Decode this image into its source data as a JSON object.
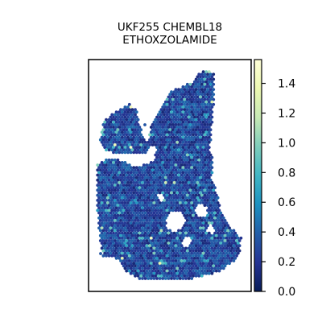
{
  "title_line1": "UKF255 CHEMBL18",
  "title_line2": "ETHOXZOLAMIDE",
  "chart_data": {
    "type": "scatter",
    "title": "UKF255 CHEMBL18 ETHOXZOLAMIDE",
    "xlabel": "",
    "ylabel": "",
    "colorbar": {
      "ticks": [
        0.0,
        0.2,
        0.4,
        0.6,
        0.8,
        1.0,
        1.2,
        1.4
      ],
      "tick_labels": [
        "0.0",
        "0.2",
        "0.4",
        "0.6",
        "0.8",
        "1.0",
        "1.2",
        "1.4"
      ],
      "range": [
        0.0,
        1.56
      ],
      "colormap": "YlGnBu",
      "colors": [
        "#ffffd9",
        "#edf8b1",
        "#c7e9b4",
        "#7fcdbb",
        "#41b6c4",
        "#1d91c0",
        "#225ea8",
        "#253494",
        "#081d58"
      ]
    },
    "typical_value_range": [
      0.1,
      0.6
    ],
    "max_value_approx": 1.5
  }
}
